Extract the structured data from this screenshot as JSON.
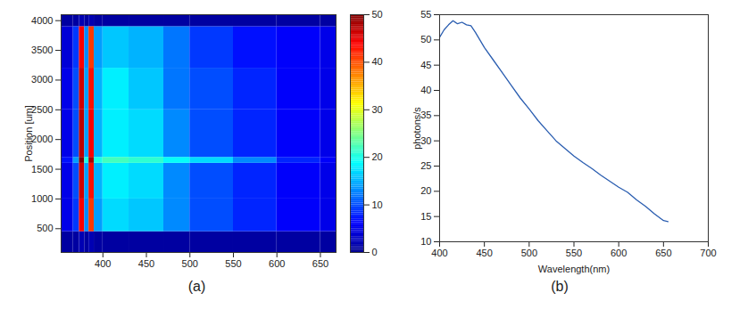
{
  "chart_data": [
    {
      "type": "heatmap",
      "caption": "(a)",
      "y_label": "Position [um]",
      "xlim": [
        352,
        668
      ],
      "ylim": [
        100,
        4100
      ],
      "xticks": [
        400,
        450,
        500,
        550,
        600,
        650
      ],
      "yticks": [
        500,
        1000,
        1500,
        2000,
        2500,
        3000,
        3500,
        4000
      ],
      "x_edges": [
        352,
        366,
        373,
        379,
        384,
        390,
        400,
        430,
        470,
        500,
        550,
        600,
        650,
        668
      ],
      "y_edges": [
        100,
        450,
        1000,
        1600,
        1700,
        2500,
        3200,
        3900,
        4100
      ],
      "cells": [
        [
          1,
          1,
          2,
          1,
          2,
          1,
          1,
          1,
          1,
          1,
          1,
          1,
          1
        ],
        [
          5,
          9,
          44,
          13,
          41,
          14,
          17,
          16,
          13,
          10,
          8,
          6,
          5
        ],
        [
          5,
          10,
          46,
          14,
          43,
          15,
          18,
          17,
          13,
          10,
          8,
          6,
          5
        ],
        [
          7,
          14,
          50,
          20,
          48,
          20,
          22,
          21,
          19,
          17,
          13,
          8,
          6
        ],
        [
          5,
          10,
          47,
          14,
          44,
          15,
          18,
          17,
          13,
          10,
          8,
          6,
          5
        ],
        [
          5,
          10,
          46,
          14,
          43,
          15,
          18,
          16,
          12,
          10,
          8,
          6,
          5
        ],
        [
          4,
          9,
          44,
          13,
          41,
          14,
          16,
          15,
          12,
          9,
          7,
          6,
          5
        ],
        [
          1,
          1,
          2,
          1,
          2,
          1,
          1,
          1,
          1,
          1,
          1,
          1,
          1
        ]
      ],
      "color": "jet",
      "color_range": [
        0,
        50
      ],
      "color_ticks": [
        0,
        10,
        20,
        30,
        40,
        50
      ]
    },
    {
      "type": "line",
      "caption": "(b)",
      "x_label": "Wavelength(nm)",
      "y_label": "photons/s",
      "xlim": [
        400,
        700
      ],
      "ylim": [
        10,
        55
      ],
      "xticks": [
        400,
        450,
        500,
        550,
        600,
        650,
        700
      ],
      "yticks": [
        10,
        15,
        20,
        25,
        30,
        35,
        40,
        45,
        50,
        55
      ],
      "color": "#2a5db0",
      "x": [
        400,
        405,
        410,
        415,
        420,
        425,
        430,
        435,
        440,
        445,
        450,
        460,
        470,
        480,
        490,
        500,
        510,
        520,
        530,
        540,
        550,
        560,
        570,
        580,
        590,
        600,
        610,
        620,
        630,
        640,
        650,
        655
      ],
      "values": [
        50.5,
        52,
        53,
        53.8,
        53.2,
        53.5,
        53,
        52.8,
        51.5,
        50,
        48.5,
        46,
        43.5,
        41,
        38.5,
        36.3,
        34,
        32,
        30,
        28.5,
        27,
        25.7,
        24.5,
        23.2,
        22,
        20.8,
        19.8,
        18.3,
        17,
        15.5,
        14.2,
        14
      ]
    }
  ]
}
